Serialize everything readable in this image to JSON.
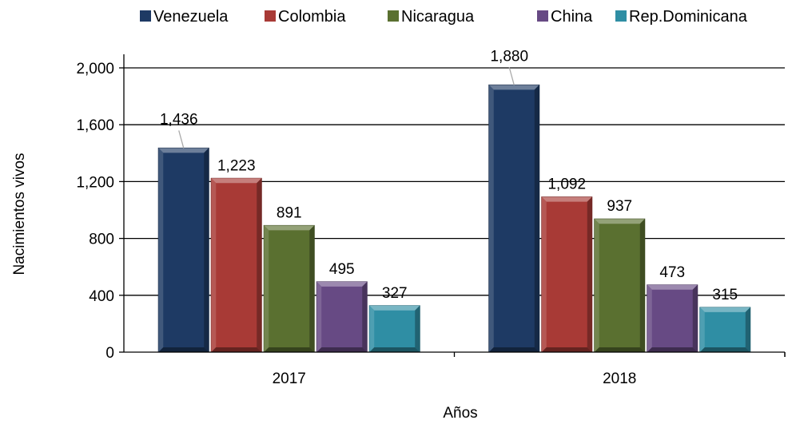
{
  "chart_data": {
    "type": "bar",
    "categories": [
      "2017",
      "2018"
    ],
    "series": [
      {
        "name": "Venezuela",
        "values": [
          1436,
          1880
        ],
        "labels": [
          "1,436",
          "1,880"
        ],
        "color": "#1e3a64"
      },
      {
        "name": "Colombia",
        "values": [
          1223,
          1092
        ],
        "labels": [
          "1,223",
          "1,092"
        ],
        "color": "#a83a36"
      },
      {
        "name": "Nicaragua",
        "values": [
          891,
          937
        ],
        "labels": [
          "891",
          "937"
        ],
        "color": "#5a7030"
      },
      {
        "name": "China",
        "values": [
          495,
          473
        ],
        "labels": [
          "495",
          "473"
        ],
        "color": "#674a84"
      },
      {
        "name": "Rep.Dominicana",
        "values": [
          327,
          315
        ],
        "labels": [
          "327",
          "315"
        ],
        "color": "#2f8ea4"
      }
    ],
    "xlabel": "Años",
    "ylabel": "Nacimientos vivos",
    "ylim": [
      0,
      2000
    ],
    "yticks": [
      0,
      400,
      800,
      1200,
      1600,
      2000
    ],
    "ytick_labels": [
      "0",
      "400",
      "800",
      "1,200",
      "1,600",
      "2,000"
    ],
    "grid": true,
    "legend": "top"
  }
}
